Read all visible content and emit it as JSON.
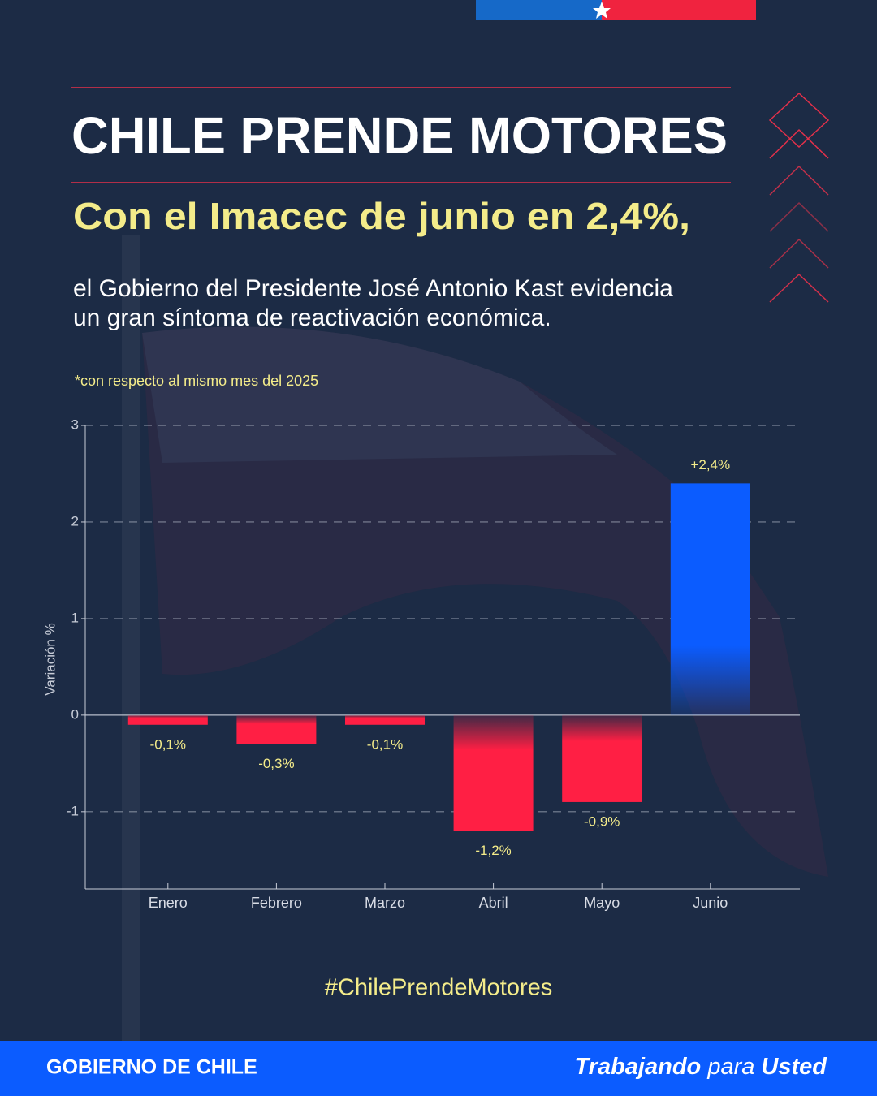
{
  "header": {
    "title": "CHILE PRENDE MOTORES",
    "subtitle": "Con el Imacec de junio en 2,4%,",
    "body": [
      "el Gobierno del Presidente José Antonio Kast evidencia",
      "un gran síntoma de reactivación económica."
    ],
    "note": "*con respecto al mismo mes del 2025"
  },
  "chart_data": {
    "type": "bar",
    "ylabel": "Variación %",
    "categories": [
      "Enero",
      "Febrero",
      "Marzo",
      "Abril",
      "Mayo",
      "Junio"
    ],
    "values": [
      -0.1,
      -0.3,
      -0.1,
      -1.2,
      -0.9,
      2.4
    ],
    "value_labels": [
      "-0,1%",
      "-0,3%",
      "-0,1%",
      "-1,2%",
      "-0,9%",
      "+2,4%"
    ],
    "colors": [
      "#ff1f44",
      "#ff1f44",
      "#ff1f44",
      "#ff1f44",
      "#ff1f44",
      "#0b5cff"
    ],
    "ylim": [
      -1.8,
      3
    ],
    "yticks": [
      -1,
      0,
      1,
      2,
      3
    ],
    "grid": true
  },
  "hashtag": "#ChilePrendeMotores",
  "footer": {
    "brand": "GOBIERNO DE CHILE",
    "tagline": [
      "Trabajando",
      "para",
      "Usted"
    ]
  }
}
